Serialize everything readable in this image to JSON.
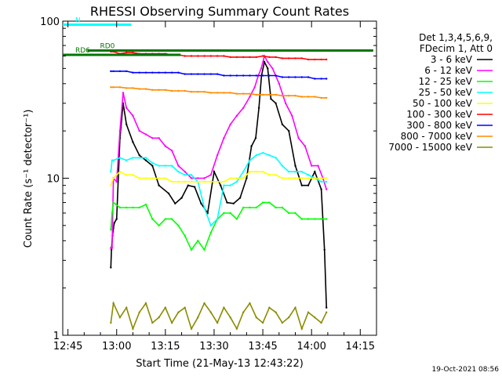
{
  "chart_data": {
    "type": "line",
    "title": "RHESSI Observing Summary Count Rates",
    "xlabel": "Start Time (21-May-13 12:43:22)",
    "ylabel": "Count Rate (s⁻¹ detector⁻¹)",
    "timestamp": "19-Oct-2021 08:56",
    "yscale": "log",
    "ylim": [
      1,
      100
    ],
    "xlim_minutes": [
      -1.6,
      34.7
    ],
    "x_ticks": [
      {
        "label": "12:45",
        "minute": 0
      },
      {
        "label": "13:00",
        "minute": 15
      },
      {
        "label": "13:15",
        "minute": 30
      },
      {
        "label": "13:30",
        "minute": 45
      },
      {
        "label": "13:45",
        "minute": 60
      },
      {
        "label": "14:00",
        "minute": 75
      },
      {
        "label": "14:15",
        "minute": 90
      }
    ],
    "y_ticks": [
      {
        "label": "1",
        "value": 1
      },
      {
        "label": "10",
        "value": 10
      },
      {
        "label": "100",
        "value": 100
      }
    ],
    "legend_header": [
      "Det 1,3,4,5,6,9,",
      "FDecim 1, Att 0"
    ],
    "series": [
      {
        "name": "3 - 6 keV",
        "color": "#000000",
        "x": [
          13.2,
          13.4,
          13.7,
          14.0,
          14.3,
          15.0,
          16.0,
          17.0,
          18.0,
          20.0,
          22.0,
          24.0,
          26.0,
          28.0,
          31.0,
          33.0,
          35.0,
          37.0,
          39.0,
          41.0,
          43.0,
          45.0,
          47.0,
          49.0,
          51.0,
          53.0,
          55.0,
          56.5,
          57.8,
          58.8,
          59.6,
          60.5,
          61.5,
          62.5,
          64.0,
          66.0,
          68.0,
          70.0,
          72.0,
          74.0,
          76.0,
          78.0,
          79.0,
          79.6
        ],
        "y": [
          2.7,
          3.5,
          4.3,
          4.8,
          5.2,
          5.5,
          18,
          30,
          22,
          17,
          14,
          13,
          12,
          9,
          8,
          6.9,
          7.5,
          9,
          8.8,
          6.9,
          6,
          11,
          9,
          7,
          6.9,
          7.5,
          10,
          16,
          18,
          28,
          45,
          55,
          50,
          32,
          30,
          22,
          20,
          12,
          9,
          9,
          11,
          8.5,
          3.5,
          1.5
        ]
      },
      {
        "name": "6 - 12 keV",
        "color": "#ff00ff",
        "x": [
          13.2,
          13.6,
          14.0,
          15.0,
          16.0,
          17.0,
          18.0,
          20.0,
          22.0,
          24.0,
          26.0,
          28.0,
          30.0,
          32.0,
          34.0,
          36.0,
          38.0,
          40.0,
          42.0,
          44.0,
          46.0,
          48.0,
          50.0,
          52.0,
          54.0,
          56.0,
          57.5,
          58.6,
          59.5,
          60.5,
          61.5,
          63.0,
          65.0,
          67.0,
          69.0,
          71.0,
          73.0,
          75.0,
          77.0,
          78.5,
          79.6
        ],
        "y": [
          3.6,
          3.6,
          10,
          9.5,
          20,
          35,
          28,
          25,
          20,
          19,
          18,
          18,
          16,
          15,
          12,
          11,
          10,
          10,
          10,
          10.5,
          14,
          18,
          22,
          25,
          28,
          33,
          38,
          45,
          50,
          60,
          55,
          50,
          40,
          30,
          25,
          18,
          16,
          12,
          12,
          10,
          8.5
        ]
      },
      {
        "name": "12 - 25 keV",
        "color": "#00ff00",
        "x": [
          13.2,
          13.6,
          14.0,
          16.0,
          18.0,
          20.0,
          22.0,
          24.0,
          26.0,
          28.0,
          30.0,
          32.0,
          34.0,
          36.0,
          38.0,
          40.0,
          42.0,
          44.0,
          46.0,
          48.0,
          50.0,
          52.0,
          54.0,
          56.0,
          58.0,
          60.0,
          62.0,
          64.0,
          66.0,
          68.0,
          70.0,
          72.0,
          74.0,
          76.0,
          78.0,
          79.6
        ],
        "y": [
          4.7,
          6,
          7,
          6.5,
          6.5,
          6.5,
          6.5,
          6.8,
          5.5,
          5,
          5.5,
          5.5,
          5,
          4.3,
          3.5,
          4,
          3.5,
          4.5,
          5.5,
          6,
          6,
          5.5,
          6.5,
          6.5,
          6.5,
          7,
          7,
          6.5,
          6.5,
          6,
          6,
          5.5,
          5.5,
          5.5,
          5.5,
          5.5
        ]
      },
      {
        "name": "25 - 50 keV",
        "color": "#00ffff",
        "x": [
          13.2,
          13.6,
          14.0,
          16.0,
          18.0,
          20.0,
          22.0,
          24.0,
          26.0,
          28.0,
          30.0,
          32.0,
          34.0,
          36.0,
          38.0,
          40.0,
          42.0,
          44.0,
          46.0,
          48.0,
          50.0,
          52.0,
          54.0,
          56.0,
          58.0,
          60.0,
          62.0,
          64.0,
          66.0,
          68.0,
          70.0,
          72.0,
          74.0,
          76.0,
          78.0,
          79.6
        ],
        "y": [
          11,
          13,
          13,
          13.5,
          13,
          13.5,
          13.5,
          13.5,
          12.5,
          12,
          12,
          12,
          11,
          10.5,
          10.5,
          9.5,
          6.5,
          5,
          5.5,
          9,
          9,
          9.5,
          11,
          13,
          14,
          14.5,
          14,
          13.5,
          12,
          11,
          11,
          11,
          10.5,
          10,
          9.5,
          9.5
        ]
      },
      {
        "name": "50 - 100 keV",
        "color": "#ffff00",
        "x": [
          13.2,
          14.0,
          16.0,
          18.0,
          20.0,
          22.0,
          24.0,
          26.0,
          28.0,
          30.0,
          32.0,
          34.0,
          36.0,
          38.0,
          40.0,
          42.0,
          44.0,
          46.0,
          48.0,
          50.0,
          52.0,
          54.0,
          56.0,
          58.0,
          60.0,
          62.0,
          64.0,
          66.0,
          68.0,
          70.0,
          72.0,
          74.0,
          76.0,
          78.0,
          79.6
        ],
        "y": [
          9,
          10,
          11,
          10.5,
          10.5,
          10,
          10,
          10,
          10,
          10,
          9.5,
          9.5,
          9.5,
          9.5,
          9.5,
          9.5,
          9.5,
          9.5,
          9.5,
          10,
          10,
          10,
          11,
          11,
          11,
          10.5,
          10.5,
          10,
          10,
          10,
          10,
          10,
          10,
          10,
          10
        ]
      },
      {
        "name": "100 - 300 keV",
        "color": "#ff0000",
        "x": [
          13.2,
          14.0,
          16.0,
          18.0,
          20.0,
          22.0,
          24.0,
          26.0,
          28.0,
          30.0,
          32.0,
          34.0,
          36.0,
          38.0,
          40.0,
          42.0,
          44.0,
          46.0,
          48.0,
          50.0,
          52.0,
          54.0,
          56.0,
          58.0,
          60.0,
          62.0,
          64.0,
          66.0,
          68.0,
          70.0,
          72.0,
          74.0,
          76.0,
          78.0,
          79.6
        ],
        "y": [
          64,
          64,
          62,
          63,
          63,
          62,
          62,
          62,
          62,
          62,
          61,
          61,
          60,
          60,
          60,
          60,
          60,
          60,
          60,
          59,
          59,
          59,
          59,
          59,
          60,
          59,
          59,
          58,
          58,
          58,
          58,
          57,
          57,
          57,
          57
        ]
      },
      {
        "name": "300 - 800 keV",
        "color": "#0000ff",
        "x": [
          13.2,
          14.0,
          16.0,
          18.0,
          20.0,
          22.0,
          24.0,
          26.0,
          28.0,
          30.0,
          32.0,
          34.0,
          36.0,
          38.0,
          40.0,
          42.0,
          44.0,
          46.0,
          48.0,
          50.0,
          52.0,
          54.0,
          56.0,
          58.0,
          60.0,
          62.0,
          64.0,
          66.0,
          68.0,
          70.0,
          72.0,
          74.0,
          76.0,
          78.0,
          79.6
        ],
        "y": [
          48,
          48,
          48,
          48,
          47,
          47,
          47,
          47,
          47,
          47,
          47,
          47,
          46,
          46,
          46,
          46,
          46,
          46,
          45,
          45,
          45,
          45,
          45,
          45,
          45,
          45,
          45,
          44,
          44,
          44,
          44,
          44,
          43,
          43,
          43
        ]
      },
      {
        "name": "800 - 7000 keV",
        "color": "#ff8c00",
        "x": [
          13.2,
          14.0,
          16.0,
          18.0,
          20.0,
          22.0,
          24.0,
          26.0,
          28.0,
          30.0,
          32.0,
          34.0,
          36.0,
          38.0,
          40.0,
          42.0,
          44.0,
          46.0,
          48.0,
          50.0,
          52.0,
          54.0,
          56.0,
          58.0,
          60.0,
          62.0,
          64.0,
          66.0,
          68.0,
          70.0,
          72.0,
          74.0,
          76.0,
          78.0,
          79.6
        ],
        "y": [
          38,
          38,
          38,
          37.5,
          37.5,
          37,
          37,
          36.5,
          36.5,
          36.5,
          36,
          36,
          36,
          35.5,
          35.5,
          35.5,
          35,
          35,
          35,
          35,
          34.5,
          34.5,
          34.5,
          34,
          34,
          34,
          34,
          33.5,
          33.5,
          33.5,
          33,
          33,
          33,
          32.5,
          32.5
        ]
      },
      {
        "name": "7000 - 15000 keV",
        "color": "#8b8b00",
        "x": [
          13.2,
          14.0,
          16.0,
          18.0,
          20.0,
          22.0,
          24.0,
          26.0,
          28.0,
          30.0,
          32.0,
          34.0,
          36.0,
          38.0,
          40.0,
          42.0,
          44.0,
          46.0,
          48.0,
          50.0,
          52.0,
          54.0,
          56.0,
          58.0,
          60.0,
          62.0,
          64.0,
          66.0,
          68.0,
          70.0,
          72.0,
          74.0,
          76.0,
          78.0,
          79.6
        ],
        "y": [
          1.2,
          1.6,
          1.3,
          1.5,
          1.1,
          1.4,
          1.6,
          1.2,
          1.3,
          1.5,
          1.2,
          1.4,
          1.5,
          1.1,
          1.3,
          1.6,
          1.4,
          1.2,
          1.5,
          1.3,
          1.1,
          1.4,
          1.6,
          1.3,
          1.2,
          1.5,
          1.4,
          1.2,
          1.3,
          1.5,
          1.1,
          1.4,
          1.3,
          1.2,
          1.4
        ]
      }
    ],
    "flag_segments": [
      {
        "label": "N",
        "color": "#00ffff",
        "y": 95,
        "x0": -1.6,
        "x1": 19.5
      },
      {
        "label": "RD0",
        "color": "#007700",
        "y": 65,
        "x0": 6.0,
        "x1": 94.0
      },
      {
        "label": "RD6",
        "color": "#007700",
        "y": 61,
        "x0": -1.6,
        "x1": 34.7
      }
    ],
    "grid": false,
    "legend_position": "right"
  }
}
